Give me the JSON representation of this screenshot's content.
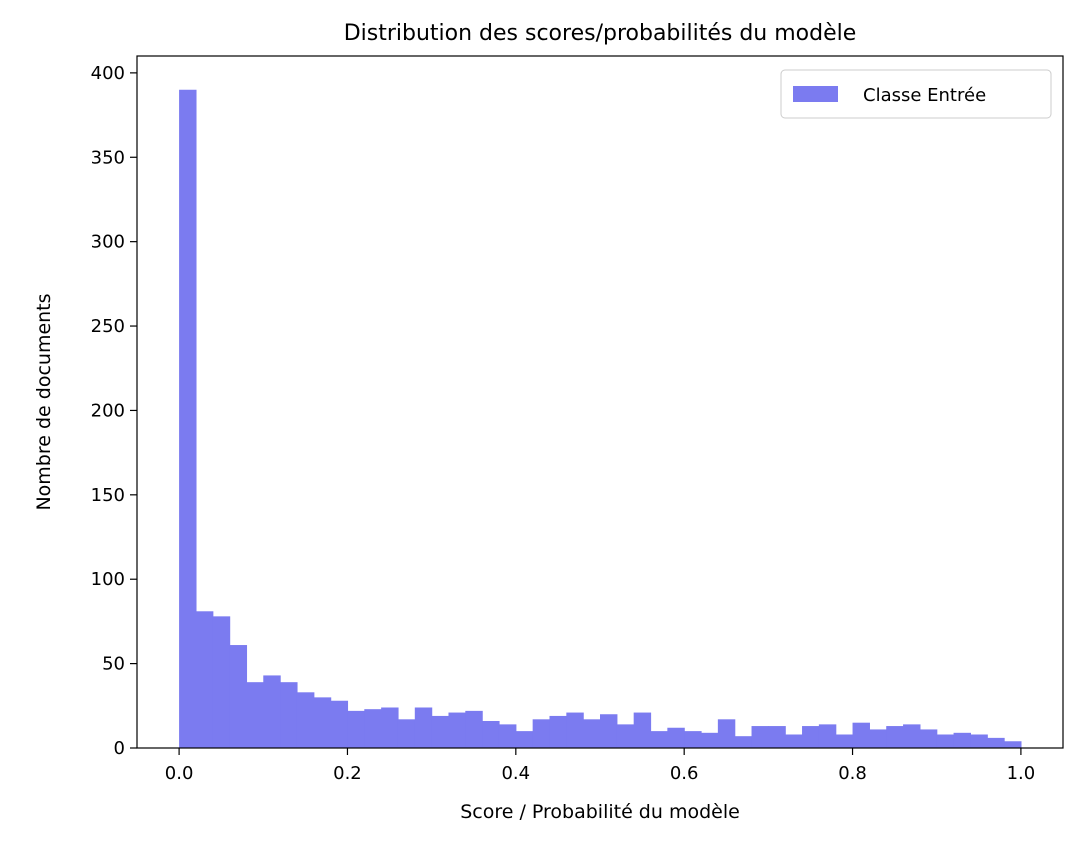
{
  "chart_data": {
    "type": "bar",
    "title": "Distribution des scores/probabilités du modèle",
    "xlabel": "Score / Probabilité du modèle",
    "ylabel": "Nombre de documents",
    "xlim": [
      -0.05,
      1.05
    ],
    "ylim": [
      0,
      410
    ],
    "x_ticks": [
      0.0,
      0.2,
      0.4,
      0.6,
      0.8,
      1.0
    ],
    "x_tick_labels": [
      "0.0",
      "0.2",
      "0.4",
      "0.6",
      "0.8",
      "1.0"
    ],
    "y_ticks": [
      0,
      50,
      100,
      150,
      200,
      250,
      300,
      350,
      400
    ],
    "y_tick_labels": [
      "0",
      "50",
      "100",
      "150",
      "200",
      "250",
      "300",
      "350",
      "400"
    ],
    "grid": false,
    "legend_position": "top-right",
    "bin_start": 0.0,
    "bin_width": 0.02,
    "series": [
      {
        "name": "Classe Entrée",
        "color": "#7b7bf0",
        "values": [
          390,
          81,
          78,
          61,
          39,
          43,
          39,
          33,
          30,
          28,
          22,
          23,
          24,
          17,
          24,
          19,
          21,
          22,
          16,
          14,
          10,
          17,
          19,
          21,
          17,
          20,
          14,
          21,
          10,
          12,
          10,
          9,
          17,
          7,
          13,
          13,
          8,
          13,
          14,
          8,
          15,
          11,
          13,
          14,
          11,
          8,
          9,
          8,
          6,
          4
        ]
      }
    ]
  }
}
